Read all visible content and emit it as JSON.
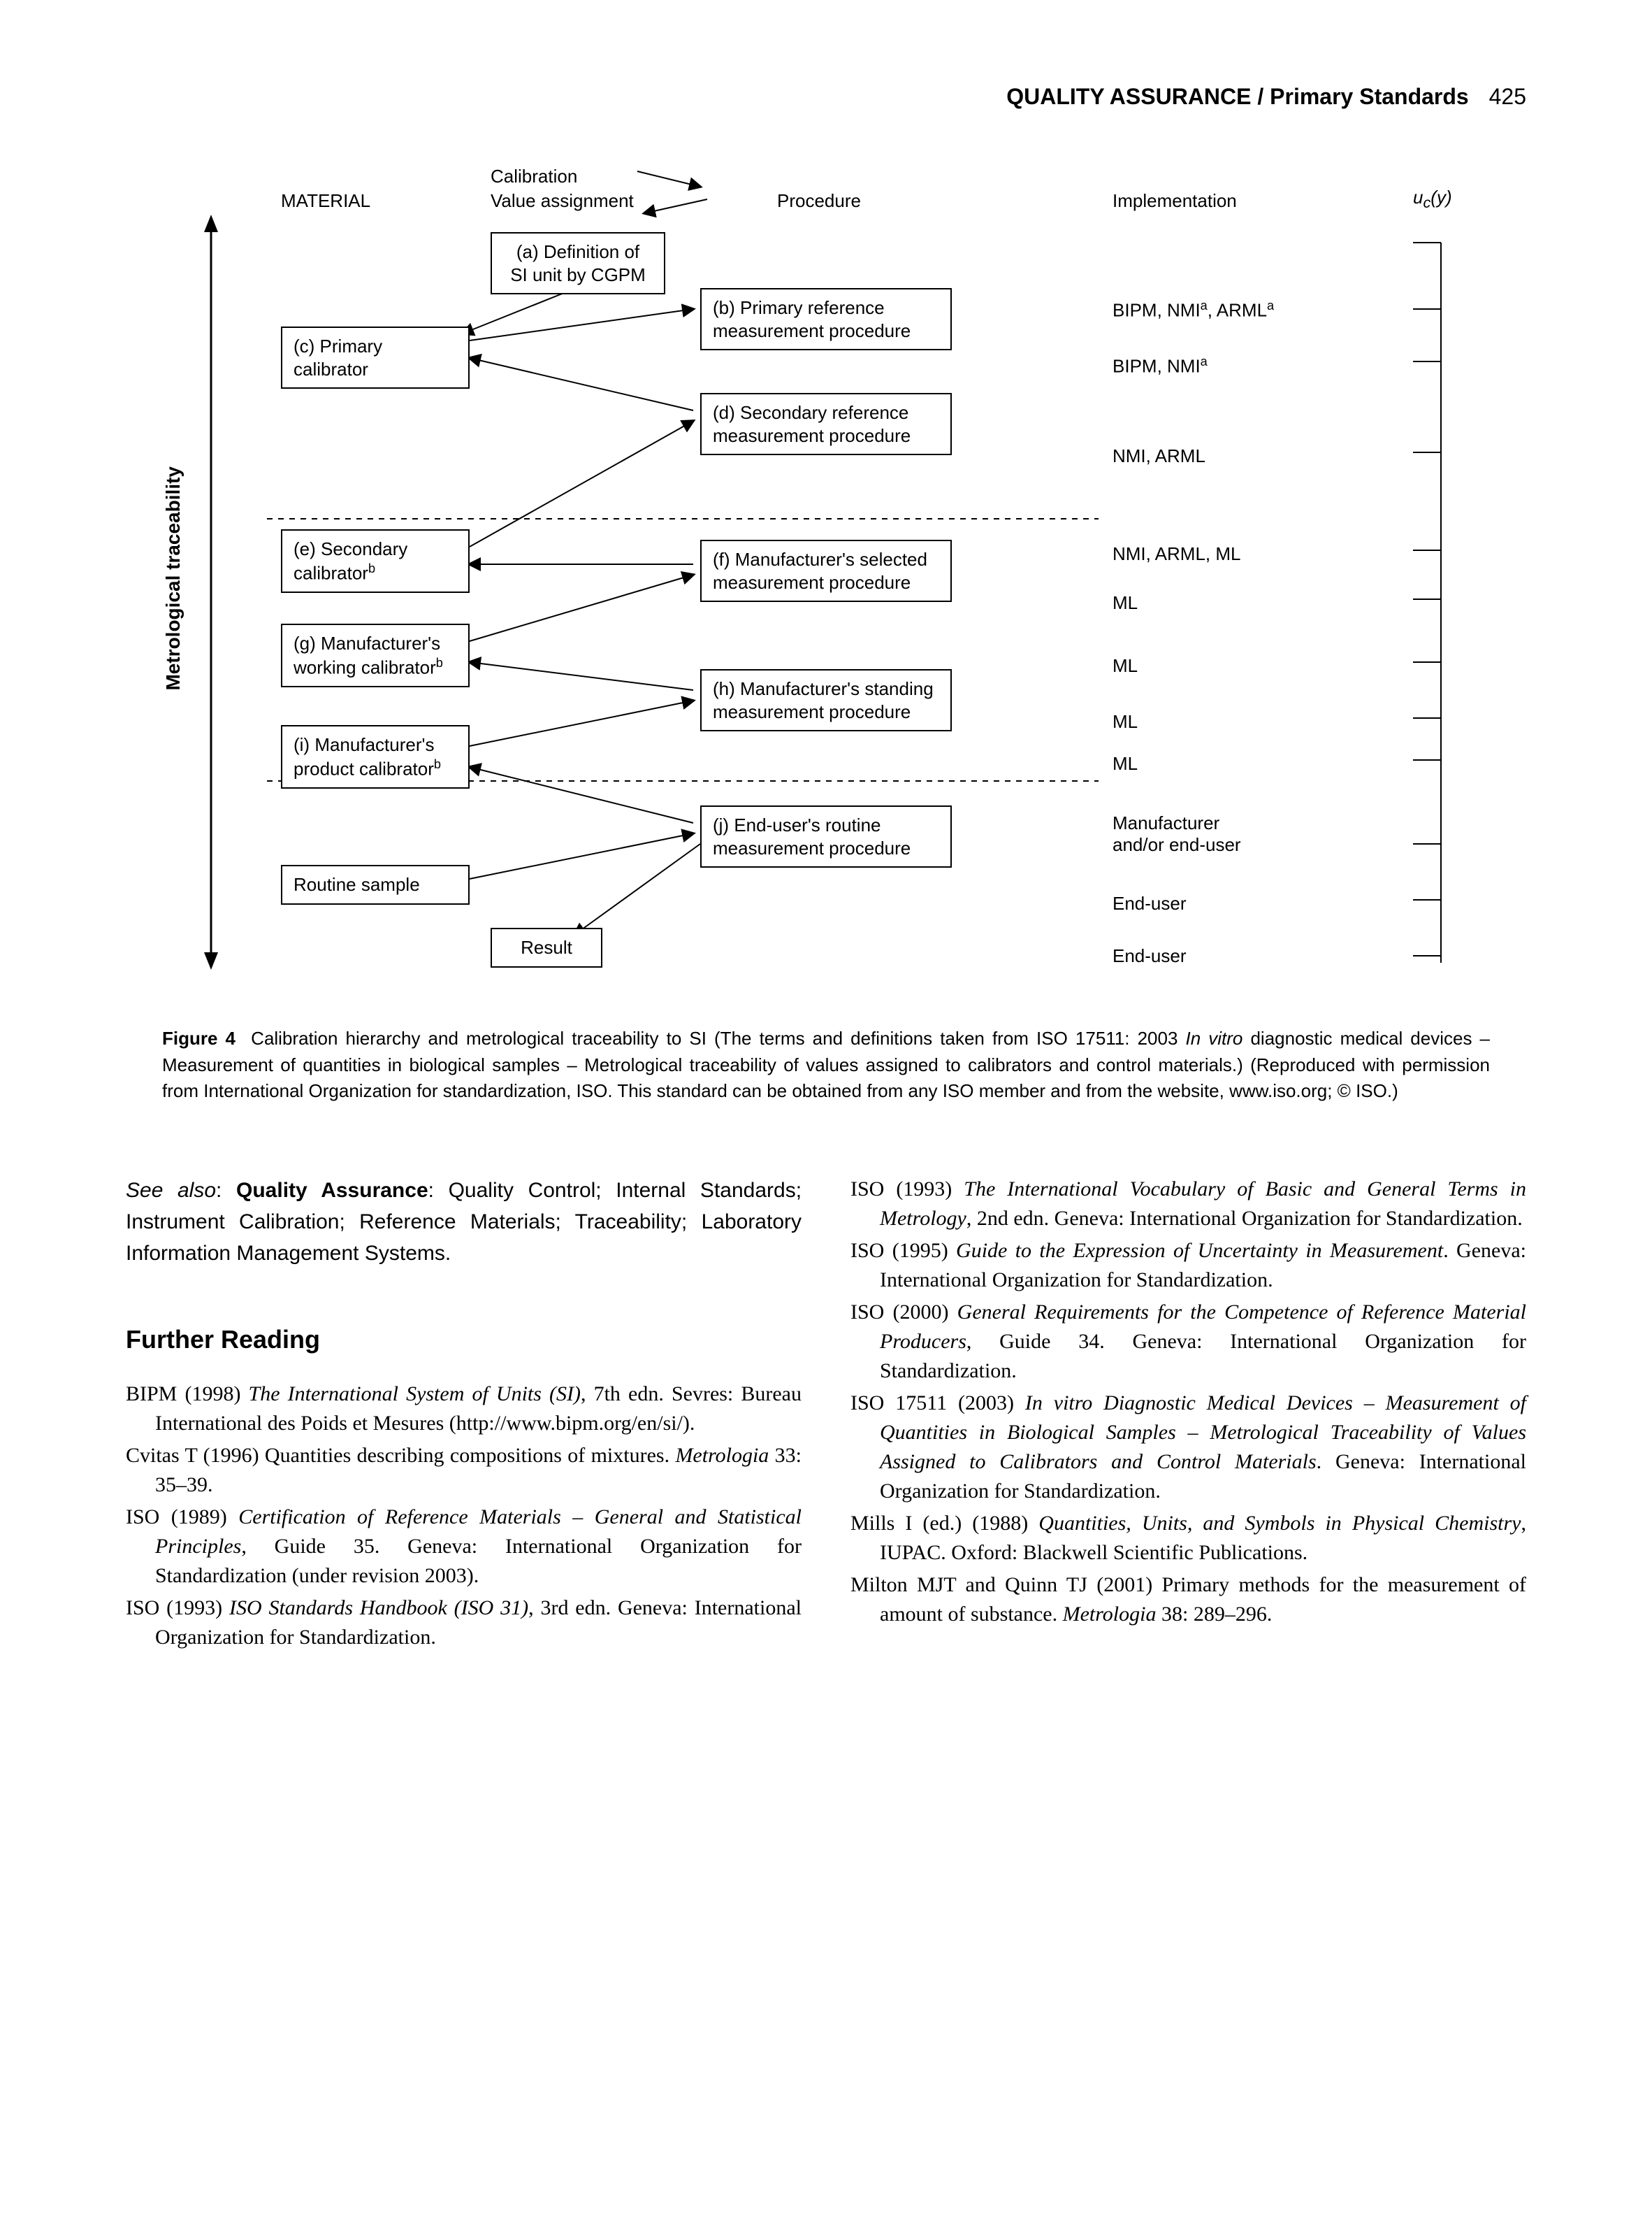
{
  "header": {
    "section": "QUALITY ASSURANCE / Primary Standards",
    "page": "425"
  },
  "diagram": {
    "col_headers": {
      "material": "MATERIAL",
      "calibration": "Calibration",
      "value_assign": "Value assignment",
      "procedure": "Procedure",
      "implementation": "Implementation",
      "uc": "u",
      "uc_sub": "c",
      "uc_arg": "(y)"
    },
    "vaxis": "Metrological traceability",
    "boxes": {
      "a": "(a) Definition of\nSI unit by CGPM",
      "b": "(b) Primary reference\nmeasurement procedure",
      "c": "(c) Primary calibrator",
      "d": "(d) Secondary  reference\nmeasurement procedure",
      "e_line1": "(e) Secondary",
      "e_line2": "calibrator",
      "f": "(f) Manufacturer's  selected\nmeasurement procedure",
      "g_line1": "(g) Manufacturer's",
      "g_line2": "working calibrator",
      "h": "(h) Manufacturer's  standing\nmeasurement procedure",
      "i_line1": "(i) Manufacturer's",
      "i_line2": "product calibrator",
      "j": "(j) End-user's routine\nmeasurement procedure",
      "routine": "Routine sample",
      "result": "Result"
    },
    "impl": {
      "r1": "BIPM, NMI",
      "r1_sup": "a",
      "r1_tail": ", ARML",
      "r1_sup2": "a",
      "r2": "BIPM, NMI",
      "r2_sup": "a",
      "r3": "NMI, ARML",
      "r4": "NMI, ARML, ML",
      "r5": "ML",
      "r6": "ML",
      "r7": "ML",
      "r8": "ML",
      "r9_line1": "Manufacturer",
      "r9_line2": "and/or end-user",
      "r10": "End-user",
      "r11": "End-user"
    },
    "sup_b": "b"
  },
  "caption": {
    "lead": "Figure 4",
    "body1": "Calibration hierarchy and metrological traceability to SI (The terms and definitions taken from ISO 17511: 2003 ",
    "ital1": "In vitro",
    "body2": " diagnostic medical devices – Measurement of quantities in biological samples – Metrological traceability of values assigned to calibrators and control materials.) (Reproduced with permission from International Organization for standardization, ISO. This standard can be obtained from any ISO member and from the website, www.iso.org; © ISO.)"
  },
  "seealso": {
    "lead": "See also",
    "bold": "Quality Assurance",
    "rest": ": Quality Control; Internal Standards; Instrument Calibration; Reference Materials; Traceability; Laboratory Information Management Systems."
  },
  "fr_heading": "Further Reading",
  "refs_left": [
    {
      "pre": "BIPM (1998) ",
      "ital": "The International System of Units (SI)",
      "post": ", 7th edn. Sevres: Bureau International des Poids et Mesures (http://www.bipm.org/en/si/)."
    },
    {
      "pre": "Cvitas T (1996) Quantities describing compositions of mixtures. ",
      "ital": "Metrologia",
      "post": " 33: 35–39."
    },
    {
      "pre": "ISO (1989) ",
      "ital": "Certification of Reference Materials – General and Statistical Principles",
      "post": ", Guide 35. Geneva: International Organization for Standardization (under revision 2003)."
    },
    {
      "pre": "ISO (1993) ",
      "ital": "ISO Standards Handbook (ISO 31)",
      "post": ", 3rd edn. Geneva: International Organization for Standardization."
    }
  ],
  "refs_right": [
    {
      "pre": "ISO (1993) ",
      "ital": "The International Vocabulary of Basic and General Terms in Metrology",
      "post": ", 2nd edn. Geneva: International Organization for Standardization."
    },
    {
      "pre": "ISO (1995) ",
      "ital": "Guide to the Expression of Uncertainty in Measurement",
      "post": ". Geneva: International Organization for Standardization."
    },
    {
      "pre": "ISO (2000) ",
      "ital": "General Requirements for the Competence of Reference Material Producers",
      "post": ", Guide 34. Geneva: International Organization for Standardization."
    },
    {
      "pre": "ISO 17511 (2003) ",
      "ital": "In vitro Diagnostic Medical Devices – Measurement of Quantities in Biological Samples – Metrological Traceability of Values Assigned to Calibrators and Control Materials",
      "post": ". Geneva: International Organization for Standardization."
    },
    {
      "pre": "Mills I (ed.) (1988) ",
      "ital": "Quantities, Units, and Symbols in Physical Chemistry",
      "post": ", IUPAC. Oxford: Blackwell Scientific Publications."
    },
    {
      "pre": "Milton MJT and Quinn TJ (2001) Primary methods for the measurement of amount of substance. ",
      "ital": "Metrologia",
      "post": " 38: 289–296."
    }
  ],
  "colors": {
    "text": "#000000",
    "bg": "#ffffff",
    "line": "#000000"
  }
}
